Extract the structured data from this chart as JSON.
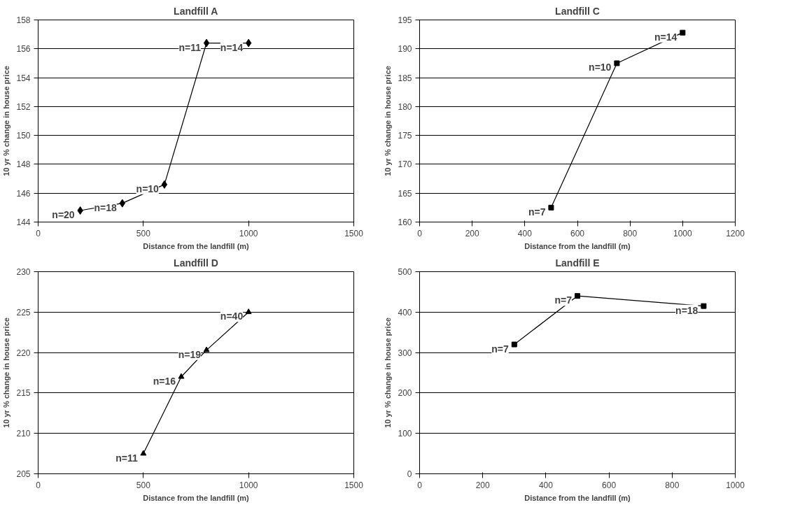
{
  "chart_data": [
    {
      "type": "line",
      "title": "Landfill A",
      "xlabel": "Distance from the landfill (m)",
      "ylabel": "10 yr % change in house price",
      "marker": "diamond",
      "grid": "y",
      "x": [
        200,
        400,
        600,
        800,
        1000
      ],
      "series": [
        {
          "color": "#000000",
          "values": [
            144.8,
            145.3,
            146.6,
            156.4,
            156.4
          ]
        }
      ],
      "xlim": [
        0,
        1500
      ],
      "xticks": [
        0,
        500,
        1000,
        1500
      ],
      "ylim": [
        144,
        158
      ],
      "yticks": [
        144,
        146,
        148,
        150,
        152,
        154,
        156,
        158
      ],
      "annotations": [
        {
          "text": "n=20",
          "x": 200,
          "y": 144.8
        },
        {
          "text": "n=18",
          "x": 400,
          "y": 145.3
        },
        {
          "text": "n=10",
          "x": 600,
          "y": 146.6
        },
        {
          "text": "n=11",
          "x": 800,
          "y": 156.4
        },
        {
          "text": "n=14",
          "x": 1000,
          "y": 156.4
        }
      ]
    },
    {
      "type": "line",
      "title": "Landfill C",
      "xlabel": "Distance from the landfill (m)",
      "ylabel": "10 yr % change in house price",
      "marker": "square",
      "grid": "y",
      "x": [
        500,
        750,
        1000
      ],
      "series": [
        {
          "color": "#000000",
          "values": [
            162.5,
            187.5,
            192.8
          ]
        }
      ],
      "xlim": [
        0,
        1200
      ],
      "xticks": [
        0,
        200,
        400,
        600,
        800,
        1000,
        1200
      ],
      "ylim": [
        160,
        195
      ],
      "yticks": [
        160,
        165,
        170,
        175,
        180,
        185,
        190,
        195
      ],
      "annotations": [
        {
          "text": "n=7",
          "x": 500,
          "y": 162.5
        },
        {
          "text": "n=10",
          "x": 750,
          "y": 187.5
        },
        {
          "text": "n=14",
          "x": 1000,
          "y": 192.8
        }
      ]
    },
    {
      "type": "line",
      "title": "Landfill D",
      "xlabel": "Distance from the landfill (m)",
      "ylabel": "10 yr % change in house price",
      "marker": "triangle",
      "grid": "y",
      "x": [
        500,
        680,
        800,
        1000
      ],
      "series": [
        {
          "color": "#000000",
          "values": [
            207.5,
            217,
            220.3,
            225
          ]
        }
      ],
      "xlim": [
        0,
        1500
      ],
      "xticks": [
        0,
        500,
        1000,
        1500
      ],
      "ylim": [
        205,
        230
      ],
      "yticks": [
        205,
        210,
        215,
        220,
        225,
        230
      ],
      "annotations": [
        {
          "text": "n=11",
          "x": 500,
          "y": 207.5
        },
        {
          "text": "n=16",
          "x": 680,
          "y": 217
        },
        {
          "text": "n=19",
          "x": 800,
          "y": 220.3
        },
        {
          "text": "n=40",
          "x": 1000,
          "y": 225
        }
      ]
    },
    {
      "type": "line",
      "title": "Landfill E",
      "xlabel": "Distance from the landfill (m)",
      "ylabel": "10 yr % change in house price",
      "marker": "square",
      "grid": "y",
      "x": [
        300,
        500,
        900
      ],
      "series": [
        {
          "color": "#000000",
          "values": [
            320,
            440,
            415
          ]
        }
      ],
      "xlim": [
        0,
        1000
      ],
      "xticks": [
        0,
        200,
        400,
        600,
        800,
        1000
      ],
      "ylim": [
        0,
        500
      ],
      "yticks": [
        0,
        100,
        200,
        300,
        400,
        500
      ],
      "annotations": [
        {
          "text": "n=7",
          "x": 300,
          "y": 320
        },
        {
          "text": "n=7",
          "x": 500,
          "y": 440
        },
        {
          "text": "n=18",
          "x": 900,
          "y": 415
        }
      ]
    }
  ]
}
